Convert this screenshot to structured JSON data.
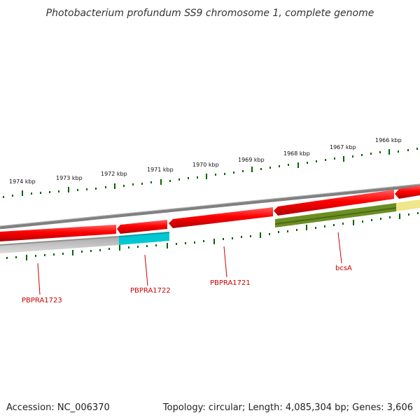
{
  "title": "Photobacterium profundum SS9 chromosome 1, complete genome",
  "accession": "Accession: NC_006370",
  "summary": "Topology: circular; Length: 4,085,304 bp; Genes: 3,606",
  "scale_labels": [
    "1974 kbp",
    "1973 kbp",
    "1972 kbp",
    "1971 kbp",
    "1970 kbp",
    "1969 kbp",
    "1968 kbp",
    "1967 kbp",
    "1966 kbp"
  ],
  "gene_labels": [
    "PBPRA1723",
    "PBPRA1722",
    "PBPRA1721",
    "bcsA"
  ],
  "colors": {
    "forward_cds": "#ff0000",
    "backbone": "#808080",
    "grey_feature": "#c0c0c0",
    "cyan_feature": "#00c8d2",
    "green_feature": "#6b8e23",
    "yellow_feature": "#f0e68c",
    "ticks": "#006400",
    "label": "#cc0000"
  }
}
